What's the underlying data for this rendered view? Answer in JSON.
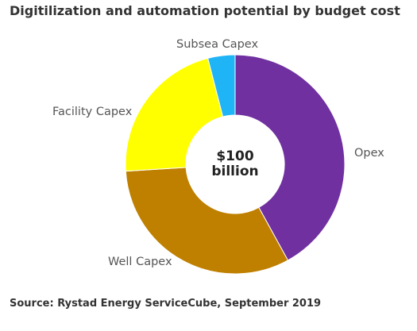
{
  "chart_data": {
    "type": "pie",
    "variant": "donut",
    "title": "Digitilization and automation potential by budget cost",
    "center_label": [
      "$100",
      "billion"
    ],
    "categories": [
      "Opex",
      "Well Capex",
      "Facility Capex",
      "Subsea Capex"
    ],
    "values": [
      42,
      32,
      22,
      4
    ],
    "colors": [
      "#7030a0",
      "#bf8000",
      "#ffff00",
      "#1eb4f5"
    ],
    "start_angle_deg": 0,
    "direction": "clockwise",
    "legend": "none",
    "source": "Source: Rystad Energy ServiceCube, September 2019"
  }
}
